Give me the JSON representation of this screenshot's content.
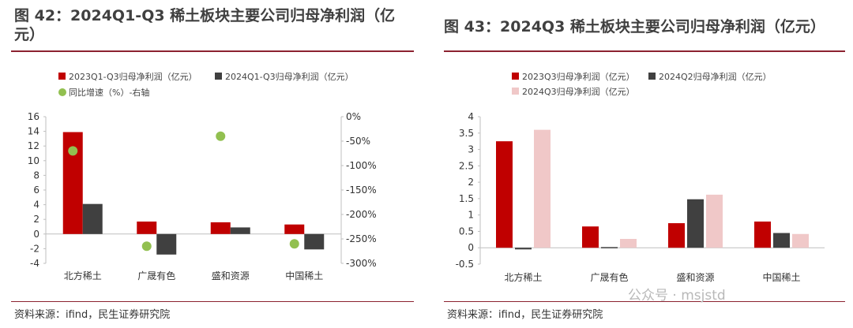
{
  "left": {
    "title": "图 42：2024Q1-Q3 稀土板块主要公司归母净利润（亿元）",
    "source": "资料来源：ifind，民生证券研究院",
    "chart_data": {
      "type": "bar",
      "categories": [
        "北方稀土",
        "广晟有色",
        "盛和资源",
        "中国稀土"
      ],
      "series": [
        {
          "name": "2023Q1-Q3归母净利润（亿元）",
          "kind": "bar",
          "axis": "left",
          "color": "#c00000",
          "values": [
            13.9,
            1.7,
            1.6,
            1.3
          ]
        },
        {
          "name": "2024Q1-Q3归母净利润（亿元）",
          "kind": "bar",
          "axis": "left",
          "color": "#404040",
          "values": [
            4.1,
            -2.8,
            0.9,
            -2.1
          ]
        },
        {
          "name": "同比增速（%）-右轴",
          "kind": "scatter",
          "axis": "right",
          "color": "#92c050",
          "values": [
            -70,
            -265,
            -40,
            -260
          ]
        }
      ],
      "ylim": [
        -4,
        16
      ],
      "yticks": [
        "-4",
        "-2",
        "0",
        "2",
        "4",
        "6",
        "8",
        "10",
        "12",
        "14",
        "16"
      ],
      "y2lim": [
        -300,
        0
      ],
      "y2ticks": [
        "0%",
        "-50%",
        "-100%",
        "-150%",
        "-200%",
        "-250%",
        "-300%"
      ],
      "legend_placement": "top-left",
      "grid": false
    }
  },
  "right": {
    "title": "图 43：2024Q3 稀土板块主要公司归母净利润（亿元）",
    "source": "资料来源：ifind，民生证券研究院",
    "chart_data": {
      "type": "bar",
      "categories": [
        "北方稀土",
        "广晟有色",
        "盛和资源",
        "中国稀土"
      ],
      "series": [
        {
          "name": "2023Q3归母净利润（亿元）",
          "color": "#c00000",
          "values": [
            3.25,
            0.65,
            0.75,
            0.8
          ]
        },
        {
          "name": "2024Q2归母净利润（亿元）",
          "color": "#404040",
          "values": [
            -0.05,
            0.02,
            1.48,
            0.45
          ]
        },
        {
          "name": "2024Q3归母净利润（亿元）",
          "color": "#f0c8c8",
          "values": [
            3.6,
            0.27,
            1.62,
            0.42
          ]
        }
      ],
      "ylim": [
        -0.5,
        4
      ],
      "yticks": [
        "-0.5",
        "0",
        "0.5",
        "1",
        "1.5",
        "2",
        "2.5",
        "3",
        "3.5",
        "4"
      ],
      "legend_placement": "top-left",
      "grid": false
    }
  },
  "watermark": "公众号 · msjstd"
}
